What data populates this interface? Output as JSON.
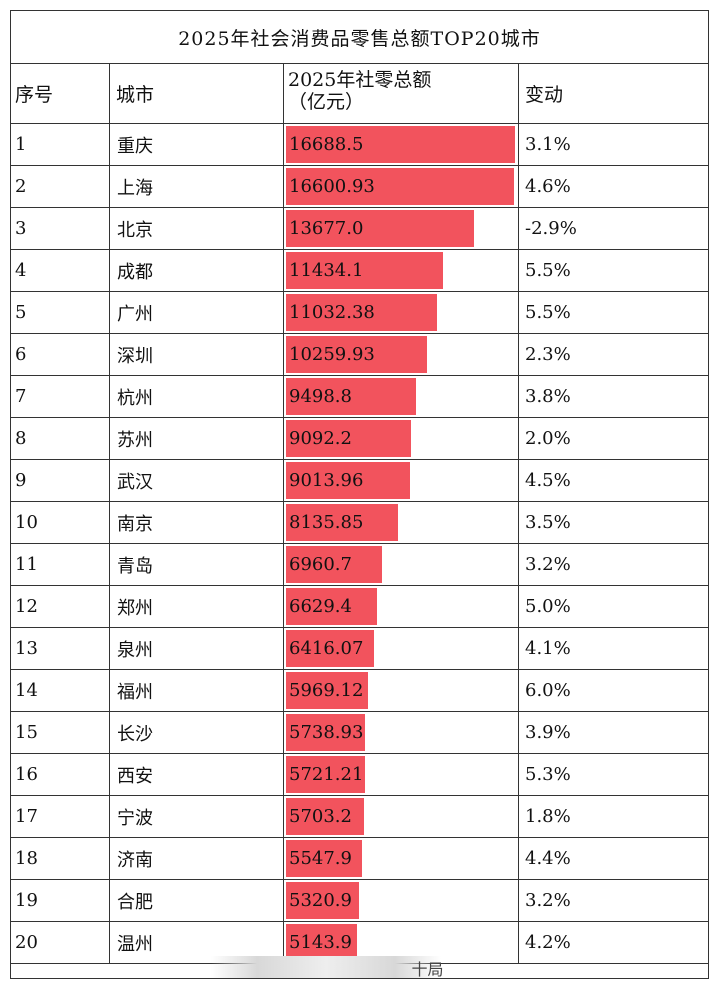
{
  "title": "2025年社会消费品零售总额TOP20城市",
  "headers": {
    "index": "序号",
    "city": "城市",
    "value_line1": "2025年社零总额",
    "value_line2": "（亿元）",
    "change": "变动"
  },
  "bar_color": "#f2535d",
  "bar_max_value": 16688.5,
  "rows": [
    {
      "index": "1",
      "city": "重庆",
      "value": "16688.5",
      "change": "3.1%"
    },
    {
      "index": "2",
      "city": "上海",
      "value": "16600.93",
      "change": "4.6%"
    },
    {
      "index": "3",
      "city": "北京",
      "value": "13677.0",
      "change": "-2.9%"
    },
    {
      "index": "4",
      "city": "成都",
      "value": "11434.1",
      "change": "5.5%"
    },
    {
      "index": "5",
      "city": "广州",
      "value": "11032.38",
      "change": "5.5%"
    },
    {
      "index": "6",
      "city": "深圳",
      "value": "10259.93",
      "change": "2.3%"
    },
    {
      "index": "7",
      "city": "杭州",
      "value": "9498.8",
      "change": "3.8%"
    },
    {
      "index": "8",
      "city": "苏州",
      "value": "9092.2",
      "change": "2.0%"
    },
    {
      "index": "9",
      "city": "武汉",
      "value": "9013.96",
      "change": "4.5%"
    },
    {
      "index": "10",
      "city": "南京",
      "value": "8135.85",
      "change": "3.5%"
    },
    {
      "index": "11",
      "city": "青岛",
      "value": "6960.7",
      "change": "3.2%"
    },
    {
      "index": "12",
      "city": "郑州",
      "value": "6629.4",
      "change": "5.0%"
    },
    {
      "index": "13",
      "city": "泉州",
      "value": "6416.07",
      "change": "4.1%"
    },
    {
      "index": "14",
      "city": "福州",
      "value": "5969.12",
      "change": "6.0%"
    },
    {
      "index": "15",
      "city": "长沙",
      "value": "5738.93",
      "change": "3.9%"
    },
    {
      "index": "16",
      "city": "西安",
      "value": "5721.21",
      "change": "5.3%"
    },
    {
      "index": "17",
      "city": "宁波",
      "value": "5703.2",
      "change": "1.8%"
    },
    {
      "index": "18",
      "city": "济南",
      "value": "5547.9",
      "change": "4.4%"
    },
    {
      "index": "19",
      "city": "合肥",
      "value": "5320.9",
      "change": "3.2%"
    },
    {
      "index": "20",
      "city": "温州",
      "value": "5143.9",
      "change": "4.2%"
    }
  ],
  "footer_text": "十局"
}
